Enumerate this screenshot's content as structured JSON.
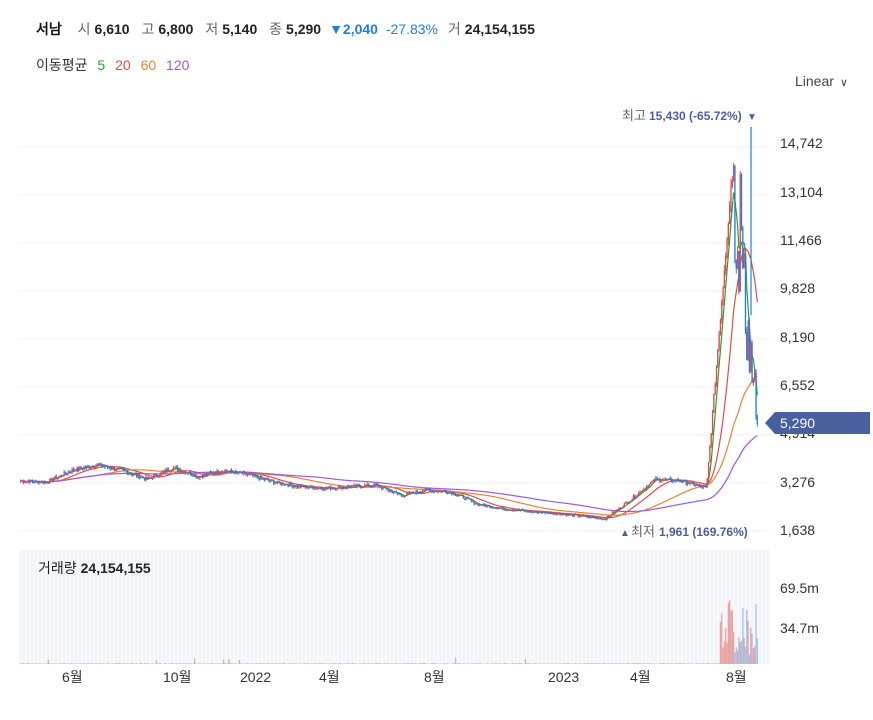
{
  "header": {
    "name": "서남",
    "open_label": "시",
    "open": "6,610",
    "high_label": "고",
    "high": "6,800",
    "low_label": "저",
    "low": "5,140",
    "close_label": "종",
    "close": "5,290",
    "change": "▼2,040",
    "change_pct": "-27.83%",
    "volume_label": "거",
    "volume": "24,154,155"
  },
  "moving_averages": {
    "label": "이동평균",
    "periods": [
      {
        "period": "5",
        "color": "#2ca02c"
      },
      {
        "period": "20",
        "color": "#e04b4b"
      },
      {
        "period": "60",
        "color": "#e8813a"
      },
      {
        "period": "120",
        "color": "#9b59e0"
      }
    ]
  },
  "scale_selector": {
    "label": "Linear"
  },
  "price_axis": {
    "ticks": [
      "14,742",
      "13,104",
      "11,466",
      "9,828",
      "8,190",
      "6,552",
      "4,914",
      "3,276",
      "1,638"
    ]
  },
  "current_price_tag": "5,290",
  "annotations": {
    "high": {
      "label": "최고",
      "value": "15,430 (-65.72%)"
    },
    "low": {
      "label": "최저",
      "value": "1,961 (169.76%)"
    }
  },
  "volume_panel": {
    "title": "거래량",
    "value": "24,154,155",
    "ticks": [
      "69.5m",
      "34.7m"
    ]
  },
  "time_axis": {
    "labels": [
      "6월",
      "10월",
      "2022",
      "4월",
      "8월",
      "2023",
      "4월",
      "8월"
    ]
  },
  "colors": {
    "up": "#e04b4b",
    "down": "#1e7ee6",
    "tag": "#4a5f9e",
    "accent": "#1e7ee6"
  },
  "chart_data": {
    "type": "candlestick",
    "title": "서남",
    "y_scale": "linear",
    "ylim": [
      1638,
      15430
    ],
    "price_ticks": [
      14742,
      13104,
      11466,
      9828,
      8190,
      6552,
      4914,
      3276,
      1638
    ],
    "x_labels": [
      "6월",
      "10월",
      "2022",
      "4월",
      "8월",
      "2023",
      "4월",
      "8월"
    ],
    "price_path": [
      [
        "2021-04",
        3350
      ],
      [
        "2021-05",
        3300
      ],
      [
        "2021-06",
        3700
      ],
      [
        "2021-07",
        3900
      ],
      [
        "2021-08",
        3700
      ],
      [
        "2021-09",
        3400
      ],
      [
        "2021-10",
        3800
      ],
      [
        "2021-11",
        3500
      ],
      [
        "2021-12",
        3700
      ],
      [
        "2022-01",
        3550
      ],
      [
        "2022-02",
        3300
      ],
      [
        "2022-03",
        3150
      ],
      [
        "2022-04",
        3100
      ],
      [
        "2022-05",
        3150
      ],
      [
        "2022-06",
        3200
      ],
      [
        "2022-07",
        2850
      ],
      [
        "2022-08",
        3050
      ],
      [
        "2022-09",
        2950
      ],
      [
        "2022-10",
        2550
      ],
      [
        "2022-11",
        2400
      ],
      [
        "2022-12",
        2300
      ],
      [
        "2023-01",
        2250
      ],
      [
        "2023-02",
        2150
      ],
      [
        "2023-03",
        2050
      ],
      [
        "2023-04",
        2700
      ],
      [
        "2023-05",
        3400
      ],
      [
        "2023-06",
        3350
      ],
      [
        "2023-07",
        3100
      ],
      [
        "2023-08",
        13800
      ],
      [
        "2023-08-end",
        5290
      ]
    ],
    "high": {
      "value": 15430,
      "pct": -65.72
    },
    "low": {
      "value": 1961,
      "pct": 169.76
    },
    "last_close": 5290,
    "volume_ticks": [
      "69.5m",
      "34.7m"
    ],
    "last_volume": 24154155
  }
}
